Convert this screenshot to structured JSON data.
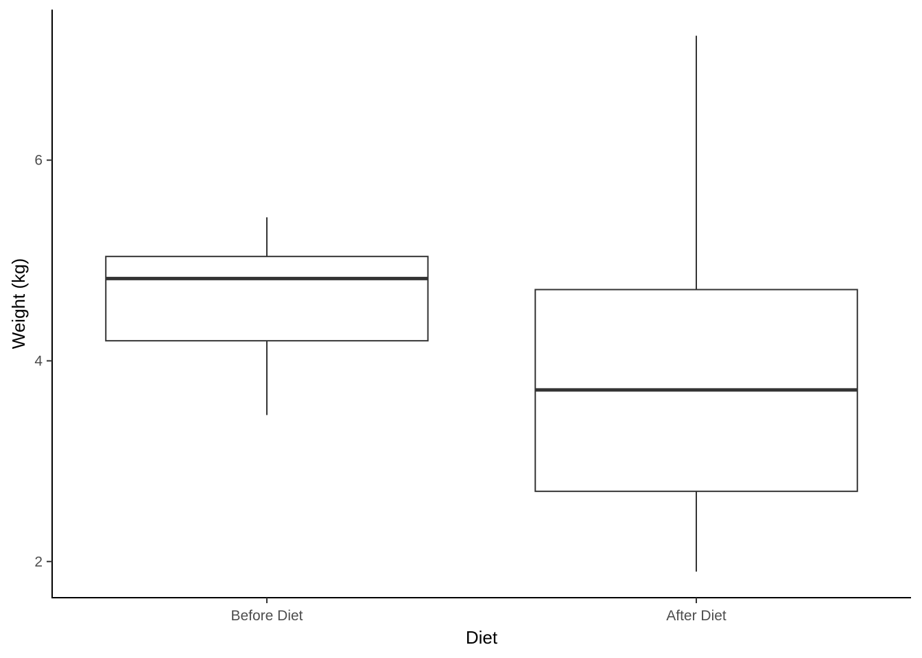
{
  "chart_data": {
    "type": "boxplot",
    "title": "",
    "xlabel": "Diet",
    "ylabel": "Weight (kg)",
    "ylim": [
      1.64,
      7.5
    ],
    "y_ticks": [
      2,
      4,
      6
    ],
    "y_tick_labels": [
      "2",
      "4",
      "6"
    ],
    "grid": false,
    "categories": [
      "Before Diet",
      "After Diet"
    ],
    "boxes": [
      {
        "category": "Before Diet",
        "whisker_low": 3.46,
        "q1": 4.2,
        "median": 4.82,
        "q3": 5.04,
        "whisker_high": 5.43
      },
      {
        "category": "After Diet",
        "whisker_low": 1.9,
        "q1": 2.7,
        "median": 3.71,
        "q3": 4.71,
        "whisker_high": 7.24
      }
    ]
  }
}
